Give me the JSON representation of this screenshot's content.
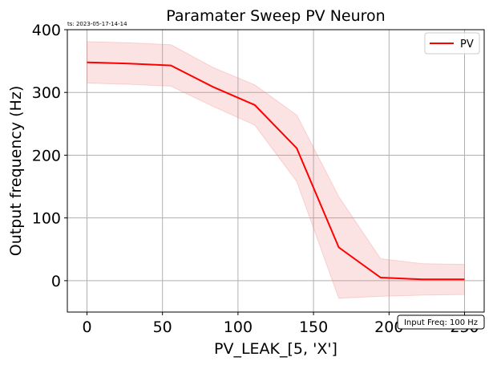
{
  "timestamp": "ts: 2023-05-17-14-14",
  "note": "Input Freq: 100 Hz",
  "colors": {
    "line": "#ff0000",
    "band": "#f08080",
    "grid": "#b0b0b0"
  },
  "chart_data": {
    "type": "line",
    "title": "Paramater Sweep PV Neuron",
    "xlabel": "PV_LEAK_[5, 'X']",
    "ylabel": "Output frequency (Hz)",
    "xlim": [
      -13,
      263
    ],
    "ylim": [
      -50,
      400
    ],
    "xticks": [
      0,
      50,
      100,
      150,
      200,
      250
    ],
    "yticks": [
      0,
      100,
      200,
      300,
      400
    ],
    "grid": true,
    "legend_position": "top-right",
    "series": [
      {
        "name": "PV",
        "x": [
          0,
          27.8,
          55.6,
          83.3,
          111.1,
          138.9,
          166.7,
          194.4,
          222.2,
          250
        ],
        "y": [
          348,
          346,
          343,
          309,
          280,
          211,
          53,
          5,
          2,
          2
        ],
        "y_lower": [
          315,
          313,
          310,
          278,
          248,
          158,
          -28,
          -25,
          -23,
          -22
        ],
        "y_upper": [
          381,
          379,
          376,
          340,
          312,
          264,
          134,
          35,
          27,
          26
        ]
      }
    ]
  }
}
